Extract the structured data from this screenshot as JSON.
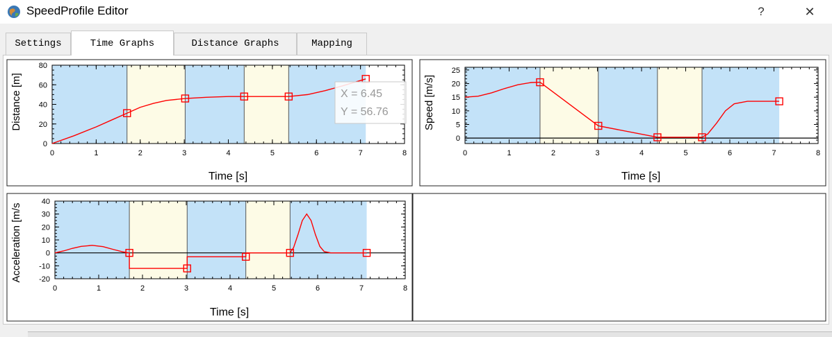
{
  "window": {
    "title": "SpeedProfile Editor",
    "help_label": "?",
    "close_label": "✕",
    "icon": "globe-app-icon"
  },
  "tabs": [
    {
      "label": "Settings",
      "active": false
    },
    {
      "label": "Time Graphs",
      "active": true
    },
    {
      "label": "Distance Graphs",
      "active": false
    },
    {
      "label": "Mapping",
      "active": false
    }
  ],
  "colors": {
    "segment_blue": "#c3e2f8",
    "segment_yellow": "#fdfbe6",
    "curve": "#ff0000",
    "divider": "#555555"
  },
  "segments": {
    "boundaries": [
      0,
      1.7,
      3.02,
      4.36,
      5.37,
      7.12
    ],
    "fills": [
      "blue",
      "yellow",
      "blue",
      "yellow",
      "blue"
    ]
  },
  "charts": {
    "distance": {
      "ylabel": "Distance [m]",
      "xlabel": "Time [s]",
      "tooltip": {
        "x_text": "X = 6.45",
        "y_text": "Y = 56.76"
      }
    },
    "speed": {
      "ylabel": "Speed [m/s]",
      "xlabel": "Time [s]"
    },
    "acceleration": {
      "ylabel": "Acceleration [m/s",
      "xlabel": "Time [s]"
    }
  },
  "chart_data": [
    {
      "type": "line",
      "ylabel": "Distance [m]",
      "xlabel": "Time [s]",
      "xlim": [
        0,
        8
      ],
      "ylim": [
        0,
        80
      ],
      "xticks": [
        0,
        1,
        2,
        3,
        4,
        5,
        6,
        7,
        8
      ],
      "yticks": [
        0,
        20,
        40,
        60,
        80
      ],
      "series": [
        {
          "x": [
            0,
            0.5,
            1.0,
            1.4,
            1.7,
            2.0,
            2.3,
            2.6,
            3.02,
            3.5,
            4.0,
            4.36,
            4.8,
            5.37,
            5.8,
            6.2,
            6.6,
            7.12
          ],
          "y": [
            0,
            8,
            17,
            25,
            31,
            37,
            41,
            44,
            46,
            47.2,
            48,
            48,
            48,
            48,
            50,
            54,
            59,
            66
          ]
        }
      ],
      "markers": {
        "x": [
          1.7,
          3.02,
          4.36,
          5.37,
          7.12
        ],
        "y": [
          31,
          46,
          48,
          48,
          66
        ]
      }
    },
    {
      "type": "line",
      "ylabel": "Speed [m/s]",
      "xlabel": "Time [s]",
      "xlim": [
        0,
        8
      ],
      "ylim": [
        -2,
        26
      ],
      "xticks": [
        0,
        1,
        2,
        3,
        4,
        5,
        6,
        7,
        8
      ],
      "yticks": [
        0,
        5,
        10,
        15,
        20,
        25
      ],
      "series": [
        {
          "x": [
            0,
            0.3,
            0.6,
            0.9,
            1.2,
            1.5,
            1.7,
            3.02,
            4.36,
            5.37,
            5.5,
            5.7,
            5.9,
            6.1,
            6.4,
            7.12
          ],
          "y": [
            15,
            15.4,
            16.6,
            18.2,
            19.6,
            20.4,
            20.5,
            4.5,
            0.3,
            0.3,
            1.5,
            5.5,
            10,
            12.6,
            13.5,
            13.5
          ]
        }
      ],
      "markers": {
        "x": [
          1.7,
          3.02,
          4.36,
          5.37,
          7.12
        ],
        "y": [
          20.5,
          4.5,
          0.3,
          0.3,
          13.5
        ]
      }
    },
    {
      "type": "line",
      "ylabel": "Acceleration [m/s",
      "xlabel": "Time [s]",
      "xlim": [
        0,
        8
      ],
      "ylim": [
        -20,
        40
      ],
      "xticks": [
        0,
        1,
        2,
        3,
        4,
        5,
        6,
        7,
        8
      ],
      "yticks": [
        -20,
        -10,
        0,
        10,
        20,
        30,
        40
      ],
      "series": [
        {
          "x": [
            0,
            0.2,
            0.4,
            0.6,
            0.85,
            1.1,
            1.35,
            1.55,
            1.7,
            1.7,
            3.02,
            3.02,
            4.36,
            4.36,
            5.37,
            5.45,
            5.55,
            5.65,
            5.75,
            5.85,
            5.95,
            6.05,
            6.15,
            6.3,
            7.12
          ],
          "y": [
            0,
            1.5,
            3.5,
            5,
            5.8,
            4.8,
            2.5,
            0.8,
            0,
            -12,
            -12,
            -3,
            -3,
            0,
            0,
            4,
            14,
            25,
            30,
            25,
            14,
            5,
            1,
            0,
            0
          ]
        }
      ],
      "markers": {
        "x": [
          1.7,
          3.02,
          4.36,
          5.37,
          7.12
        ],
        "y": [
          0,
          -12,
          -3,
          0,
          0
        ]
      }
    }
  ]
}
